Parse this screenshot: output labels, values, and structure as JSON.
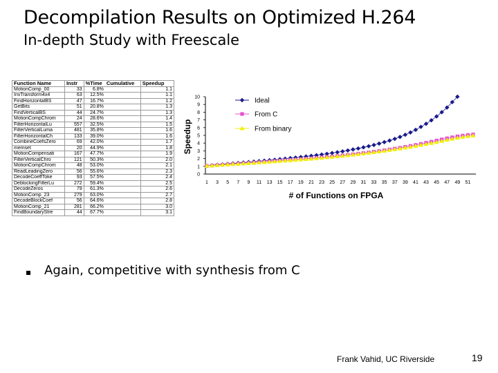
{
  "slide": {
    "title": "Decompilation Results on Optimized H.264",
    "subtitle": "In-depth Study with Freescale",
    "bullet": "Again, competitive with synthesis from C",
    "footer": "Frank Vahid, UC Riverside",
    "page_number": "19"
  },
  "table": {
    "headers": [
      "Function Name",
      "Instr",
      "%Time",
      "Cumulative",
      "Speedup"
    ],
    "rows": [
      [
        "MotionComp_00",
        "33",
        "6.8%",
        "",
        "1.1"
      ],
      [
        "InvTransform4x4",
        "63",
        "12.5%",
        "",
        "1.1"
      ],
      [
        "FindHorizontalBS",
        "47",
        "16.7%",
        "",
        "1.2"
      ],
      [
        "GetBits",
        "51",
        "20.8%",
        "",
        "1.3"
      ],
      [
        "FindVerticalBS",
        "44",
        "24.7%",
        "",
        "1.3"
      ],
      [
        "MotionCompChrom",
        "24",
        "28.6%",
        "",
        "1.4"
      ],
      [
        "FilterHorizontalLu",
        "557",
        "32.5%",
        "",
        "1.5"
      ],
      [
        "FilterVerticalLuma",
        "481",
        "35.8%",
        "",
        "1.6"
      ],
      [
        "FilterHorizontalCh",
        "133",
        "39.0%",
        "",
        "1.6"
      ],
      [
        "CombineCoefsZero",
        "69",
        "42.0%",
        "",
        "1.7"
      ],
      [
        "memset",
        "20",
        "44.9%",
        "",
        "1.8"
      ],
      [
        "MotionCompensati",
        "167",
        "47.7%",
        "",
        "1.9"
      ],
      [
        "FilterVerticalChro",
        "121",
        "50.3%",
        "",
        "2.0"
      ],
      [
        "MotionCompChrom",
        "48",
        "53.0%",
        "",
        "2.1"
      ],
      [
        "ReadLeadingZero",
        "56",
        "55.6%",
        "",
        "2.3"
      ],
      [
        "DecodeCoeffToke",
        "93",
        "57.5%",
        "",
        "2.4"
      ],
      [
        "DeblockingFilterLu",
        "272",
        "59.4%",
        "",
        "2.5"
      ],
      [
        "DecodeZeros",
        "79",
        "61.3%",
        "",
        "2.6"
      ],
      [
        "MotionComp_23",
        "279",
        "63.0%",
        "",
        "2.7"
      ],
      [
        "DecodeBlockCoef",
        "56",
        "64.6%",
        "",
        "2.8"
      ],
      [
        "MotionComp_21",
        "281",
        "66.2%",
        "",
        "3.0"
      ],
      [
        "FindBoundaryStre",
        "44",
        "67.7%",
        "",
        "3.1"
      ]
    ]
  },
  "chart_data": {
    "type": "line",
    "xlabel": "# of Functions on FPGA",
    "ylabel": "Speedup",
    "ylim": [
      0,
      10
    ],
    "yticks": [
      "0",
      "1",
      "2",
      "3",
      "4",
      "5",
      "6",
      "7",
      "8",
      "9",
      "10"
    ],
    "xticks": [
      "1",
      "3",
      "5",
      "7",
      "9",
      "11",
      "13",
      "15",
      "17",
      "19",
      "21",
      "23",
      "25",
      "27",
      "29",
      "31",
      "33",
      "35",
      "37",
      "39",
      "41",
      "43",
      "45",
      "47",
      "49",
      "51"
    ],
    "x": [
      1,
      2,
      3,
      4,
      5,
      6,
      7,
      8,
      9,
      10,
      11,
      12,
      13,
      14,
      15,
      16,
      17,
      18,
      19,
      20,
      21,
      22,
      23,
      24,
      25,
      26,
      27,
      28,
      29,
      30,
      31,
      32,
      33,
      34,
      35,
      36,
      37,
      38,
      39,
      40,
      41,
      42,
      43,
      44,
      45,
      46,
      47,
      48,
      49,
      50,
      51,
      52
    ],
    "series": [
      {
        "name": "Ideal",
        "color": "#1a1a8c",
        "marker": "diamond",
        "values": [
          1.07,
          1.14,
          1.2,
          1.26,
          1.31,
          1.37,
          1.43,
          1.49,
          1.55,
          1.61,
          1.67,
          1.73,
          1.79,
          1.85,
          1.92,
          1.99,
          2.06,
          2.13,
          2.2,
          2.28,
          2.36,
          2.44,
          2.53,
          2.62,
          2.72,
          2.82,
          2.93,
          3.05,
          3.18,
          3.31,
          3.45,
          3.6,
          3.76,
          3.94,
          4.13,
          4.33,
          4.55,
          4.8,
          5.08,
          5.38,
          5.72,
          6.1,
          6.5,
          6.95,
          7.45,
          8.0,
          8.6,
          9.3,
          10.0,
          null,
          null,
          null
        ]
      },
      {
        "name": "From C",
        "color": "#e64fd0",
        "marker": "square",
        "values": [
          1.05,
          1.1,
          1.15,
          1.2,
          1.25,
          1.29,
          1.34,
          1.38,
          1.43,
          1.47,
          1.52,
          1.57,
          1.62,
          1.67,
          1.72,
          1.77,
          1.82,
          1.87,
          1.92,
          1.97,
          2.03,
          2.09,
          2.15,
          2.21,
          2.27,
          2.34,
          2.41,
          2.48,
          2.56,
          2.64,
          2.72,
          2.8,
          2.89,
          2.98,
          3.08,
          3.18,
          3.29,
          3.4,
          3.52,
          3.64,
          3.77,
          3.9,
          4.04,
          4.18,
          4.33,
          4.48,
          4.62,
          4.75,
          4.87,
          4.97,
          5.05,
          5.12
        ]
      },
      {
        "name": "From binary",
        "color": "#f0f000",
        "marker": "triangle",
        "values": [
          1.04,
          1.09,
          1.13,
          1.18,
          1.22,
          1.26,
          1.3,
          1.35,
          1.39,
          1.43,
          1.47,
          1.52,
          1.56,
          1.61,
          1.66,
          1.71,
          1.76,
          1.81,
          1.86,
          1.91,
          1.96,
          2.02,
          2.08,
          2.14,
          2.2,
          2.27,
          2.34,
          2.41,
          2.48,
          2.56,
          2.64,
          2.72,
          2.8,
          2.89,
          2.98,
          3.08,
          3.18,
          3.28,
          3.39,
          3.5,
          3.62,
          3.74,
          3.86,
          3.99,
          4.12,
          4.26,
          4.4,
          4.53,
          4.66,
          4.78,
          4.88,
          4.96
        ]
      }
    ]
  }
}
